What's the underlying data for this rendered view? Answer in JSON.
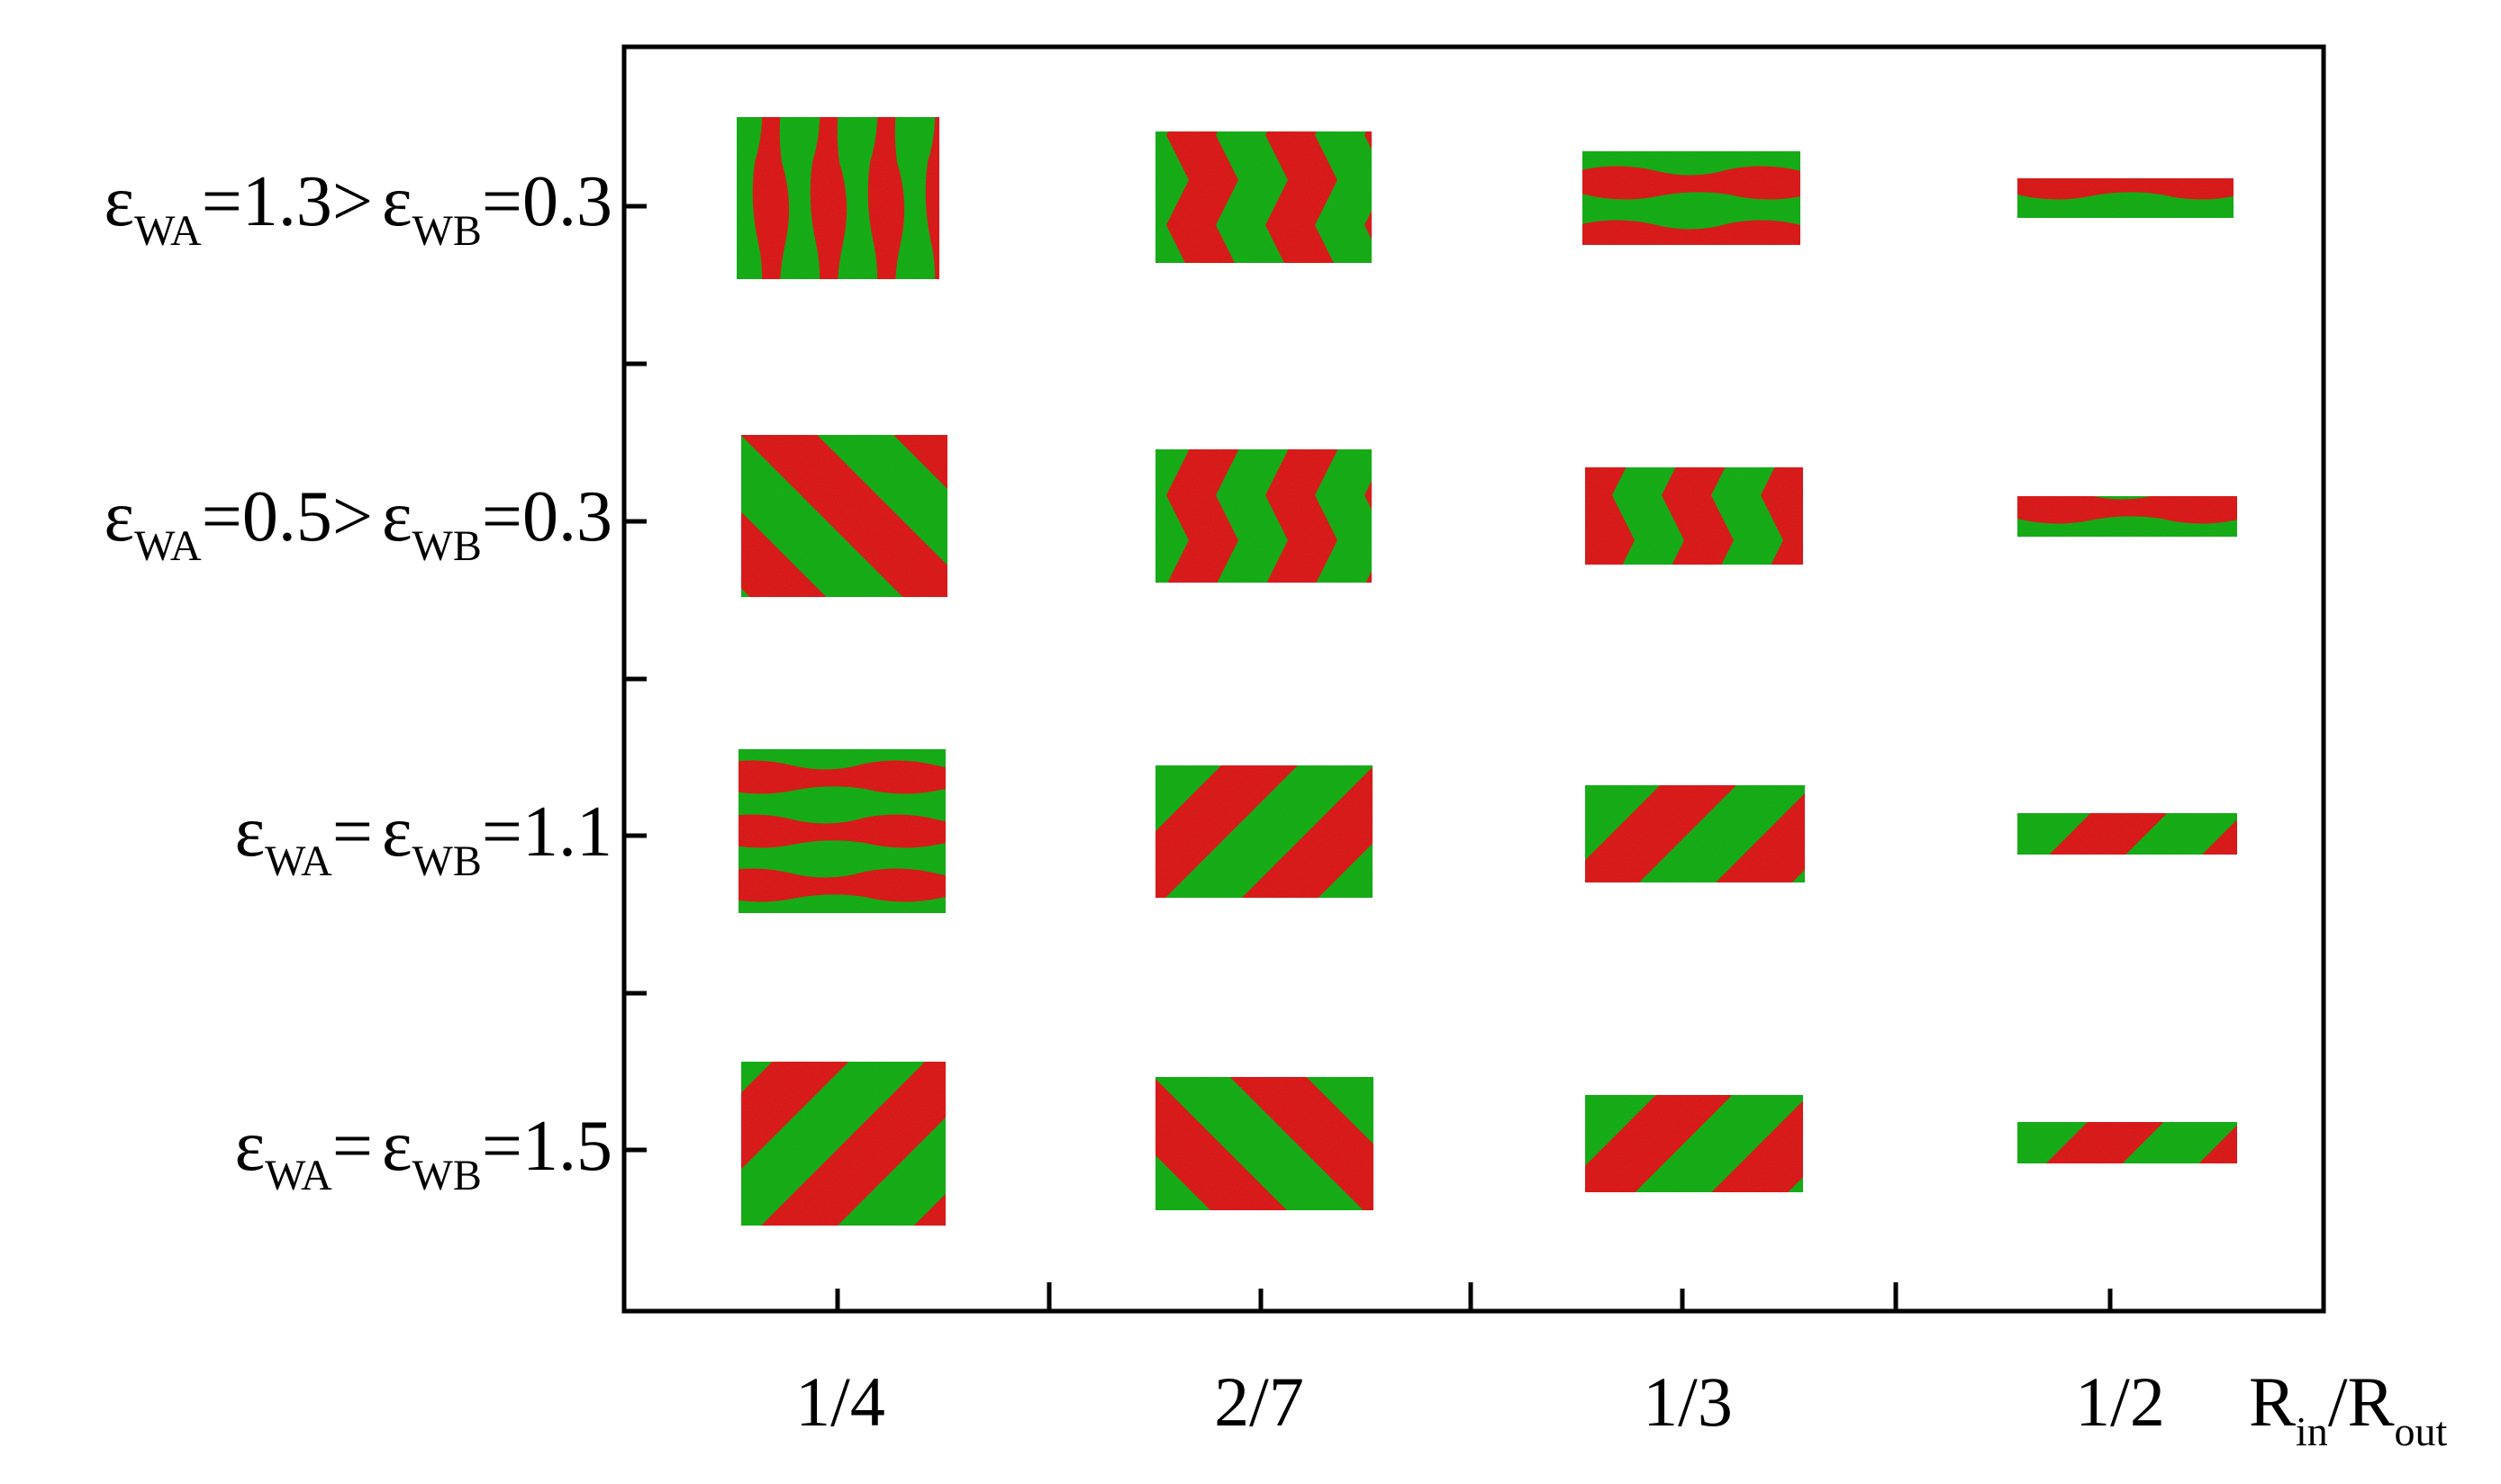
{
  "colors": {
    "phase_a": "#e01b1b",
    "phase_b": "#16b21a",
    "frame": "#000000",
    "background": "#ffffff"
  },
  "x_axis": {
    "label_main": "R",
    "label_main_sub": "in",
    "label_sep": "/R",
    "label_sep_sub": "out",
    "ticks": [
      "1/4",
      "2/7",
      "1/3",
      "1/2"
    ]
  },
  "rows": [
    {
      "lhs_sym": "ε",
      "lhs_sub": "WA",
      "lhs_val": "=1.3>",
      "rhs_sym": "ε",
      "rhs_sub": "WB",
      "rhs_val": "=0.3"
    },
    {
      "lhs_sym": "ε",
      "lhs_sub": "WA",
      "lhs_val": "=0.5>",
      "rhs_sym": "ε",
      "rhs_sub": "WB",
      "rhs_val": "=0.3"
    },
    {
      "lhs_sym": "ε",
      "lhs_sub": "WA",
      "lhs_val": "=",
      "rhs_sym": "ε",
      "rhs_sub": "WB",
      "rhs_val": "=1.1"
    },
    {
      "lhs_sym": "ε",
      "lhs_sub": "WA",
      "lhs_val": "=",
      "rhs_sym": "ε",
      "rhs_sub": "WB",
      "rhs_val": "=1.5"
    }
  ],
  "snapshots": [
    [
      {
        "pattern": "wavy-vertical"
      },
      {
        "pattern": "chevron"
      },
      {
        "pattern": "wavy-horizontal"
      },
      {
        "pattern": "wavy-horizontal"
      }
    ],
    [
      {
        "pattern": "diagonal-down"
      },
      {
        "pattern": "chevron"
      },
      {
        "pattern": "chevron"
      },
      {
        "pattern": "wavy-horizontal"
      }
    ],
    [
      {
        "pattern": "wavy-horizontal"
      },
      {
        "pattern": "diagonal-up"
      },
      {
        "pattern": "diagonal-up"
      },
      {
        "pattern": "diagonal-up"
      }
    ],
    [
      {
        "pattern": "diagonal-up"
      },
      {
        "pattern": "diagonal-down"
      },
      {
        "pattern": "diagonal-up"
      },
      {
        "pattern": "diagonal-up"
      }
    ]
  ]
}
